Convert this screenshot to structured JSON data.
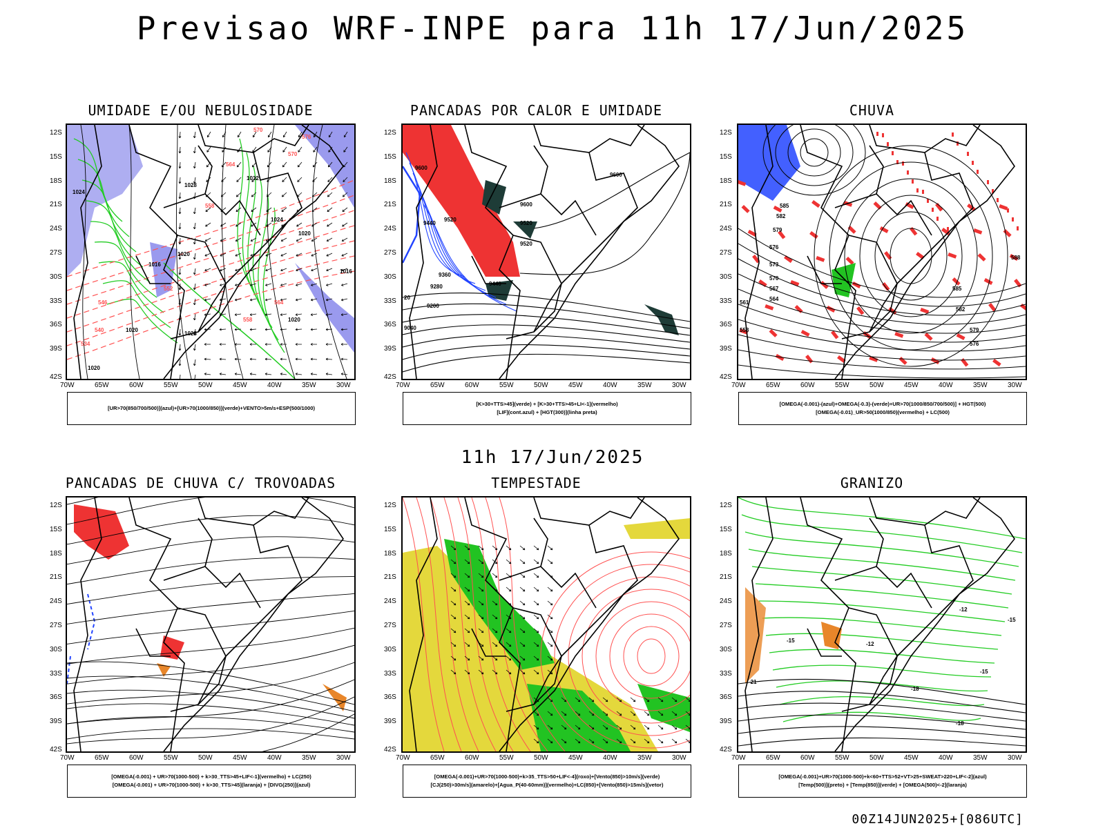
{
  "title": "Previsao WRF-INPE  para 11h 17/Jun/2025",
  "middle_date": "11h 17/Jun/2025",
  "footer": "00Z14JUN2025+[086UTC]",
  "axes": {
    "y_labels": [
      "12S",
      "15S",
      "18S",
      "21S",
      "24S",
      "27S",
      "30S",
      "33S",
      "36S",
      "39S",
      "42S"
    ],
    "x_labels": [
      "70W",
      "65W",
      "60W",
      "55W",
      "50W",
      "45W",
      "40W",
      "35W",
      "30W"
    ]
  },
  "colors": {
    "blue_fill": "#9a9aee",
    "green_contour": "#22cc22",
    "red_fill": "#ee3333",
    "red_contour": "#ff5050",
    "dark_fill": "#1e3c37",
    "blue_line": "#2244ff",
    "yellow_fill": "#e4d83c",
    "green_fill": "#22c322",
    "orange_fill": "#e8862a"
  },
  "panels": [
    {
      "title": "UMIDADE E/OU NEBULOSIDADE",
      "legend": [
        "[UR>70(850/700/500)](azul)+[UR>70(1000/850)](verde)+VENTO>5m/s+ESP(500/1000)"
      ],
      "map_labels": {
        "isobars": [
          "1016",
          "1020",
          "1024",
          "1028",
          "1032",
          "1020",
          "1016",
          "1020",
          "1028",
          "1020",
          "1020",
          "1024"
        ],
        "thickness": [
          "570",
          "564",
          "558",
          "552",
          "546",
          "540",
          "534",
          "558",
          "564",
          "570",
          "576"
        ]
      }
    },
    {
      "title": "PANCADAS POR CALOR E UMIDADE",
      "legend": [
        "[K>30+TTS>45](verde) + [K>30+TTS>45+LI<-1](vermelho)",
        "[LIF](cont.azul) + [HGT(300)](linha preta)"
      ],
      "map_labels": {
        "heights": [
          "9600",
          "9600",
          "9440",
          "9520",
          "9520",
          "9360",
          "9440",
          "9520",
          "9280",
          "9200",
          "9040",
          "9600",
          "20"
        ]
      }
    },
    {
      "title": "CHUVA",
      "legend": [
        "[OMEGA(-0.001)-(azul)+OMEGA(-0.3)-(verde)+UR>70(1000/850/700/500)] + HGT(500)",
        "[OMEGA(-0.01)_UR>50(1000/850)(vermelho) + LC(500)"
      ],
      "map_labels": {
        "heights": [
          "585",
          "582",
          "579",
          "576",
          "573",
          "570",
          "567",
          "564",
          "561",
          "558",
          "588",
          "585",
          "582",
          "579",
          "576"
        ]
      }
    },
    {
      "title": "PANCADAS DE CHUVA C/ TROVOADAS",
      "legend": [
        "[OMEGA(-0.001) + UR>70(1000-500) + k>30_TTS>45+LIF<-1](vermelho) + LC(250)",
        "[OMEGA(-0.001) + UR>70(1000-500) + k>30_TTS>45](laranja) + [DIVG(250)](azul)"
      ],
      "map_labels": {}
    },
    {
      "title": "TEMPESTADE",
      "legend": [
        "[OMEGA(-0.001)+UR>70(1000-500)+k>35_TTS>50+LIF<-4](roxo)+[Vento(850)>10m/s](verde)",
        "[CJ(250)>30m/s](amarelo)+[Agua_P(40-60mm)](vermelho)+LC(850)+[Vento(850)>15m/s](vetor)"
      ],
      "map_labels": {}
    },
    {
      "title": "GRANIZO",
      "legend": [
        "[OMEGA(-0.001)+UR>70(1000-500)+k<60+TTS>52+VT>25+SWEAT>220+LIF<-2](azul)",
        "[Temp(500)](preto) + [Temp(850)](verde) + [OMEGA(500)<-2](laranja)"
      ],
      "map_labels": {
        "temps": [
          "-12",
          "-15",
          "-18",
          "-21",
          "-15",
          "-18",
          "-12",
          "-15"
        ]
      }
    }
  ]
}
